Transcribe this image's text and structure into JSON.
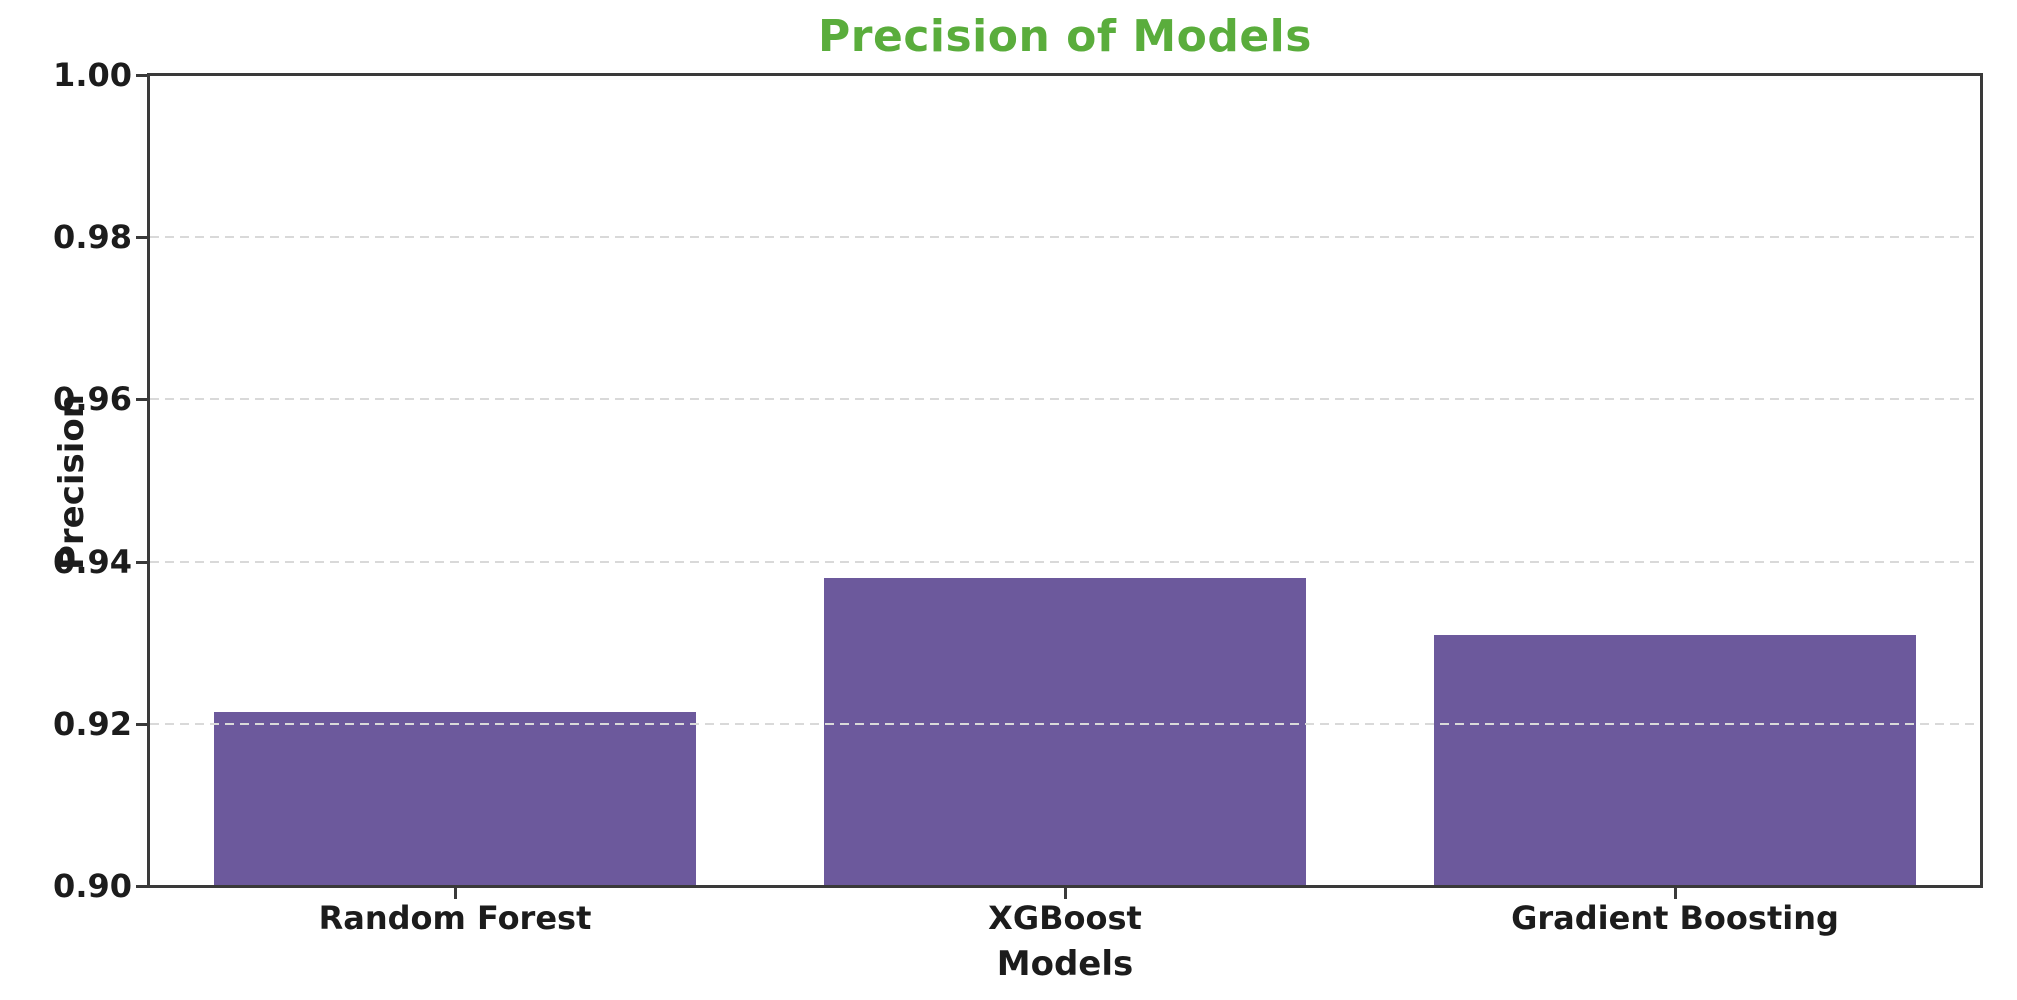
{
  "chart_data": {
    "type": "bar",
    "title": "Precision of Models",
    "xlabel": "Models",
    "ylabel": "Precision",
    "categories": [
      "Random Forest",
      "XGBoost",
      "Gradient Boosting"
    ],
    "values": [
      0.9215,
      0.938,
      0.931
    ],
    "ylim": [
      0.9,
      1.0
    ],
    "yticks": [
      0.9,
      0.92,
      0.94,
      0.96,
      0.98,
      1.0
    ],
    "ytick_labels": [
      "0.90",
      "0.92",
      "0.94",
      "0.96",
      "0.98",
      "1.00"
    ],
    "grid": "horizontal-dashed-drawn-over-bars",
    "legend_position": "none",
    "bar_width_fraction": 0.79,
    "colors": {
      "bar": "#6c599c",
      "title": "#5aad3c",
      "axis": "#3a3a3a",
      "grid": "#d9d9d9",
      "text": "#1c1c1c",
      "background": "#ffffff"
    }
  }
}
